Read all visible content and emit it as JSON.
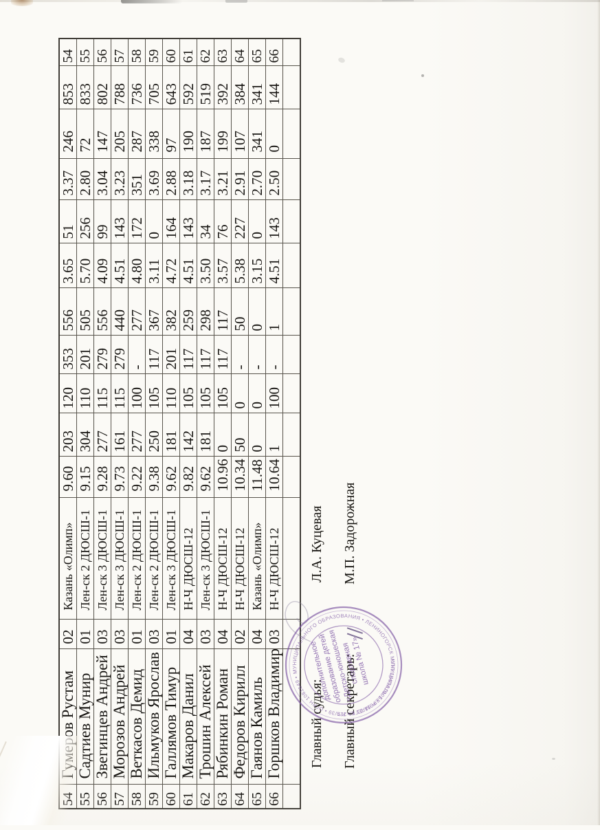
{
  "table": {
    "rows": [
      [
        "54",
        "Гумеров Рустам",
        "02",
        "Казань «Олимп»",
        "9.60",
        "203",
        "120",
        "353",
        "556",
        "3.65",
        "51",
        "3.37",
        "246",
        "853",
        "54"
      ],
      [
        "55",
        "Садтиев Мунир",
        "01",
        "Лен-ск 2 ДЮСШ-1",
        "9.15",
        "304",
        "110",
        "201",
        "505",
        "5.70",
        "256",
        "2.80",
        "72",
        "833",
        "55"
      ],
      [
        "56",
        "Звегинцев Андрей",
        "03",
        "Лен-ск 3 ДЮСШ-1",
        "9.28",
        "277",
        "115",
        "279",
        "556",
        "4.09",
        "99",
        "3.04",
        "147",
        "802",
        "56"
      ],
      [
        "57",
        "Морозов Андрей",
        "03",
        "Лен-ск 3 ДЮСШ-1",
        "9.73",
        "161",
        "115",
        "279",
        "440",
        "4.51",
        "143",
        "3.23",
        "205",
        "788",
        "57"
      ],
      [
        "58",
        "Веткасов Демид",
        "01",
        "Лен-ск 2 ДЮСШ-1",
        "9.22",
        "277",
        "100",
        "-",
        "277",
        "4.80",
        "172",
        "351",
        "287",
        "736",
        "58"
      ],
      [
        "59",
        "Ильмуков Ярослав",
        "03",
        "Лен-ск 2 ДЮСШ-1",
        "9.38",
        "250",
        "105",
        "117",
        "367",
        "3.11",
        "0",
        "3.69",
        "338",
        "705",
        "59"
      ],
      [
        "60",
        "Галлямов Тимур",
        "01",
        "Лен-ск 3 ДЮСШ-1",
        "9.62",
        "181",
        "110",
        "201",
        "382",
        "4.72",
        "164",
        "2.88",
        "97",
        "643",
        "60"
      ],
      [
        "61",
        "Макаров Данил",
        "04",
        "Н-Ч ДЮСШ-12",
        "9.82",
        "142",
        "105",
        "117",
        "259",
        "4.51",
        "143",
        "3.18",
        "190",
        "592",
        "61"
      ],
      [
        "62",
        "Трошин Алексей",
        "03",
        "Лен-ск 3 ДЮСШ-1",
        "9.62",
        "181",
        "105",
        "117",
        "298",
        "3.50",
        "34",
        "3.17",
        "187",
        "519",
        "62"
      ],
      [
        "63",
        "Рябинкин Роман",
        "04",
        "Н-Ч ДЮСШ-12",
        "10.96",
        "0",
        "105",
        "117",
        "117",
        "3.57",
        "76",
        "3.21",
        "199",
        "392",
        "63"
      ],
      [
        "64",
        "Федоров Кирилл",
        "02",
        "Н-Ч ДЮСШ-12",
        "10.34",
        "50",
        "0",
        "-",
        "50",
        "5.38",
        "227",
        "2.91",
        "107",
        "384",
        "64"
      ],
      [
        "65",
        "Гаянов Камиль",
        "04",
        "Казань «Олимп»",
        "11.48",
        "0",
        "0",
        "-",
        "0",
        "3.15",
        "0",
        "2.70",
        "341",
        "341",
        "65"
      ],
      [
        "66",
        "Горшков Владимир",
        "03",
        "Н-Ч ДЮСШ-12",
        "10.64",
        "1",
        "100",
        "-",
        "1",
        "4.51",
        "143",
        "2.50",
        "0",
        "144",
        "66"
      ],
      [
        "",
        "",
        "",
        "",
        "",
        "",
        "",
        "",
        "",
        "",
        "",
        "",
        "",
        "",
        ""
      ]
    ]
  },
  "signatures": [
    {
      "label": "Главный судья:",
      "name": "Л.А. Куцевая"
    },
    {
      "label": "Главный секретарь:",
      "name": "М.П. Задорожная"
    }
  ],
  "stamp": {
    "color": "#7b54a2",
    "ring_top": "МУНИЦИПАЛЬНОГО ОБРАЗОВАНИЯ • ЛЕНИНОГОРСК МУНИЦИПАЛЬ БЕРӘМЛЕГЕ • Р.Т.",
    "ring_bottom": "КПП 164901001 • Р 13-21 10 229/39 • ОГРН 1081649 • 9095",
    "center_lines": [
      "дополнительное",
      "образование детей",
      "«Детско-юношеская",
      "спортивная",
      "школа № 17»"
    ]
  }
}
